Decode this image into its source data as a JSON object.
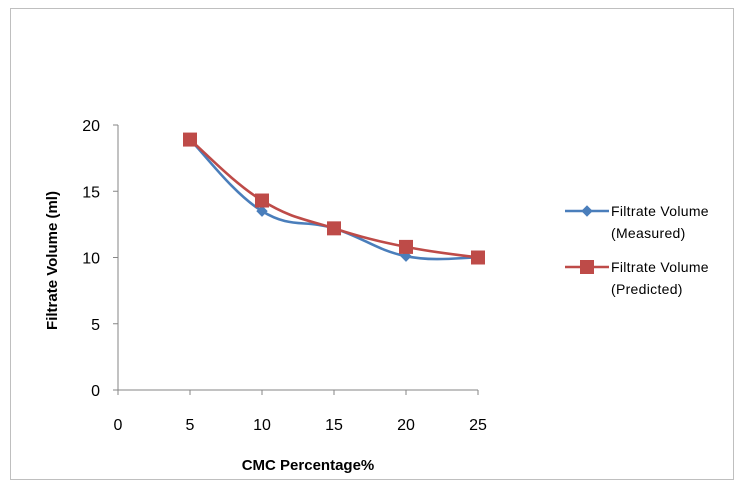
{
  "chart_data": {
    "type": "line",
    "title": "",
    "xlabel": "CMC Percentage%",
    "ylabel": "Filtrate Volume (ml)",
    "xlim": [
      0,
      25
    ],
    "ylim": [
      0,
      20
    ],
    "xticks": [
      0,
      5,
      10,
      15,
      20,
      25
    ],
    "yticks": [
      0,
      5,
      10,
      15,
      20
    ],
    "grid": false,
    "legend_position": "right",
    "series": [
      {
        "name_lines": [
          "Filtrate Volume",
          "(Measured)"
        ],
        "marker": "diamond",
        "color": "#4a7ebb",
        "x": [
          5,
          10,
          15,
          20,
          25
        ],
        "y": [
          18.9,
          13.5,
          12.2,
          10.1,
          10.0
        ]
      },
      {
        "name_lines": [
          "Filtrate Volume",
          "(Predicted)"
        ],
        "marker": "square",
        "color": "#be4b48",
        "x": [
          5,
          10,
          15,
          20,
          25
        ],
        "y": [
          18.9,
          14.3,
          12.2,
          10.8,
          10.0
        ]
      }
    ]
  }
}
